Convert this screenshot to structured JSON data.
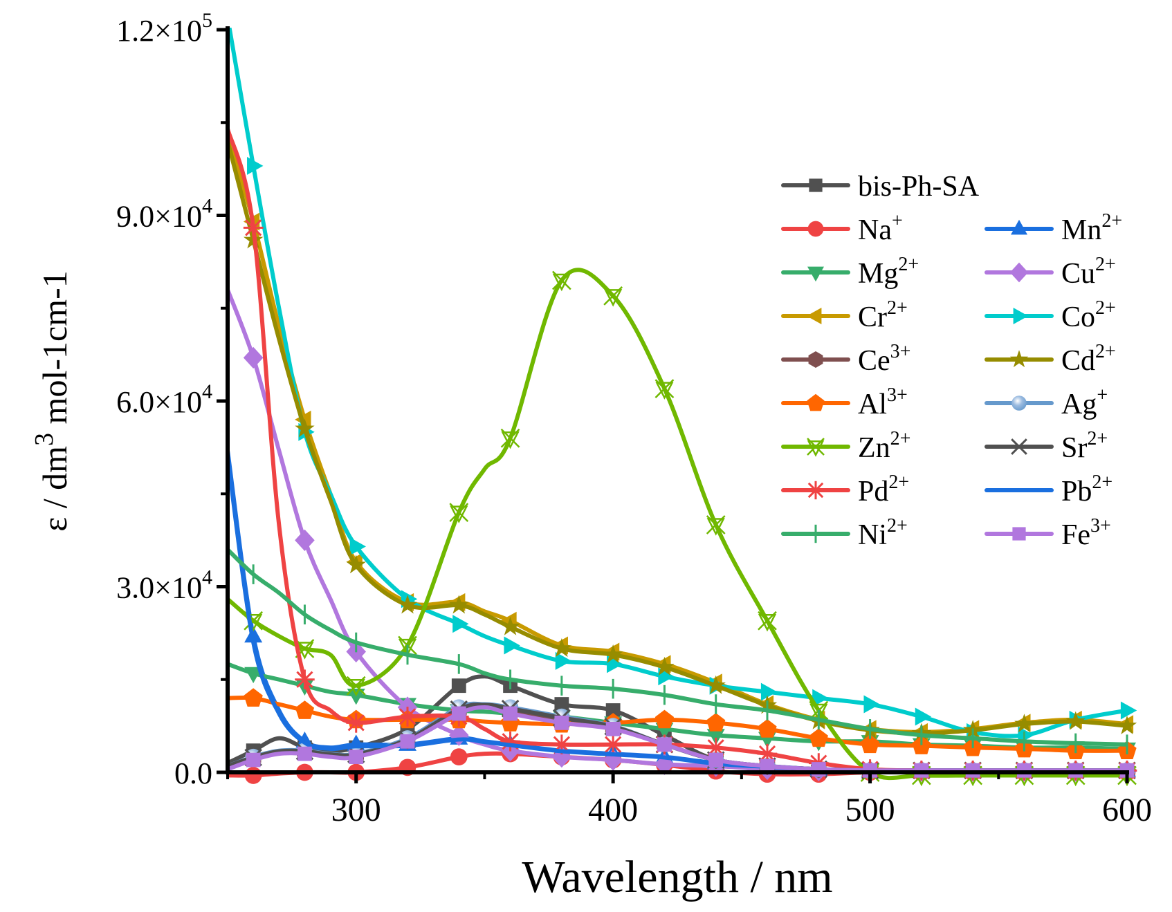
{
  "chart_data": {
    "type": "line",
    "xlabel": "Wavelength / nm",
    "ylabel": {
      "main": "ε / dm",
      "sup": "3",
      "rest": " mol-1cm-1"
    },
    "xlim": [
      250,
      600
    ],
    "ylim": [
      0,
      120000
    ],
    "grid": false,
    "legend_position": "right",
    "x_ticks": [
      {
        "value": 300,
        "label": "300"
      },
      {
        "value": 400,
        "label": "400"
      },
      {
        "value": 500,
        "label": "500"
      },
      {
        "value": 600,
        "label": "600"
      }
    ],
    "y_ticks": [
      {
        "value": 0,
        "label": "0.0",
        "exp": ""
      },
      {
        "value": 30000,
        "label": "3.0×10",
        "exp": "4"
      },
      {
        "value": 60000,
        "label": "6.0×10",
        "exp": "4"
      },
      {
        "value": 90000,
        "label": "9.0×10",
        "exp": "4"
      },
      {
        "value": 120000,
        "label": "1.2×10",
        "exp": "5"
      }
    ],
    "y_unit_multiplier": 1000,
    "x": [
      250,
      260,
      270,
      280,
      290,
      300,
      320,
      340,
      350,
      360,
      380,
      400,
      420,
      440,
      460,
      480,
      500,
      520,
      540,
      560,
      580,
      600
    ],
    "series": [
      {
        "base": "bis-Ph-SA",
        "sup": "",
        "color": "#505050",
        "marker": "square",
        "values": [
          1.5,
          3.5,
          5.5,
          4,
          3.5,
          4,
          7,
          14,
          15.5,
          14,
          11,
          10,
          6,
          2,
          1,
          0.5,
          0.3,
          0.3,
          0.3,
          0.3,
          0.3,
          0.3
        ]
      },
      {
        "base": "Na",
        "sup": "+",
        "color": "#ef4343",
        "marker": "circle",
        "values": [
          -0.5,
          -0.5,
          -0.2,
          0,
          0,
          0,
          0.8,
          2.5,
          3,
          3,
          2.5,
          2,
          1.2,
          0.2,
          -0.3,
          -0.3,
          0,
          0,
          0,
          0,
          0,
          0
        ]
      },
      {
        "base": "Mn",
        "sup": "2+",
        "color": "#1a6fdf",
        "marker": "triangle-up",
        "values": [
          52,
          22,
          10,
          5,
          4,
          4.5,
          4.5,
          5.5,
          5,
          4.5,
          3.5,
          3,
          2.5,
          1.5,
          1,
          0.5,
          0.3,
          0.3,
          0.3,
          0.3,
          0.3,
          0.3
        ]
      },
      {
        "base": "Mg",
        "sup": "2+",
        "color": "#37ad6b",
        "marker": "triangle-down",
        "values": [
          17.5,
          16,
          15,
          14,
          13,
          12.5,
          11,
          10,
          9.8,
          9.5,
          9,
          8,
          7,
          6,
          5.5,
          5,
          5,
          4.5,
          4.3,
          4,
          4,
          3.8
        ]
      },
      {
        "base": "Cu",
        "sup": "2+",
        "color": "#b177de",
        "marker": "diamond",
        "values": [
          78,
          67,
          52,
          37.5,
          28,
          19.5,
          10.5,
          6,
          4.5,
          3.5,
          2.5,
          2,
          1.3,
          1,
          0.5,
          0.3,
          0.2,
          0.2,
          0.2,
          0.2,
          0.2,
          0.2
        ]
      },
      {
        "base": "Cr",
        "sup": "2+",
        "color": "#c89a00",
        "marker": "triangle-left",
        "values": [
          103,
          89,
          72,
          57,
          45,
          34,
          27.5,
          27.5,
          26,
          24.5,
          20.5,
          19.5,
          17.5,
          14.5,
          11,
          8.5,
          7,
          6.5,
          7,
          8,
          8.5,
          7.8
        ]
      },
      {
        "base": "Co",
        "sup": "2+",
        "color": "#00cccc",
        "marker": "triangle-right",
        "values": [
          122,
          98,
          75,
          55,
          45,
          36.5,
          28,
          24,
          22,
          20.5,
          18,
          17.5,
          15.5,
          14,
          13,
          12,
          11,
          9,
          6.5,
          6,
          8.5,
          10
        ]
      },
      {
        "base": "Ce",
        "sup": "3+",
        "color": "#7f4f4f",
        "marker": "hexagon",
        "values": [
          1,
          2.3,
          3.3,
          3.3,
          2.8,
          2.8,
          5.2,
          10,
          10.8,
          10,
          8.5,
          7.2,
          4.5,
          2,
          1,
          0.5,
          0.3,
          0.3,
          0.3,
          0.3,
          0.3,
          0.3
        ]
      },
      {
        "base": "Cd",
        "sup": "2+",
        "color": "#968c00",
        "marker": "star",
        "values": [
          102,
          86,
          70,
          55.5,
          44,
          33.5,
          27,
          27,
          25.5,
          23.5,
          20,
          19,
          17,
          14,
          10.8,
          8.3,
          6.8,
          6.3,
          6.8,
          7.8,
          8.2,
          7.5
        ]
      },
      {
        "base": "Al",
        "sup": "3+",
        "color": "#ff6600",
        "marker": "pentagon",
        "values": [
          12,
          12,
          11,
          10,
          9,
          8.5,
          8.5,
          8.5,
          8.2,
          8,
          7.8,
          8,
          8.5,
          8,
          7,
          5.5,
          4.5,
          4.3,
          4,
          3.8,
          3.5,
          3.5
        ]
      },
      {
        "base": "Ag",
        "sup": "+",
        "color": "#6699cc",
        "marker": "sphere",
        "values": [
          1,
          2.5,
          3.5,
          3.5,
          3,
          3,
          5.5,
          10.5,
          11,
          10.5,
          9,
          7.5,
          4.5,
          2,
          1,
          0.5,
          0.3,
          0.3,
          0.3,
          0.3,
          0.3,
          0.3
        ]
      },
      {
        "base": "Zn",
        "sup": "2+",
        "color": "#70b800",
        "marker": "zn-cross",
        "values": [
          28,
          24.5,
          22,
          20,
          19,
          14,
          20.5,
          42,
          49,
          54,
          79.5,
          77,
          62,
          40,
          24.5,
          10,
          0,
          -0.5,
          -0.5,
          -0.5,
          -0.5,
          -0.5
        ]
      },
      {
        "base": "Sr",
        "sup": "2+",
        "color": "#505050",
        "marker": "x",
        "values": [
          1,
          2.4,
          3.4,
          3.4,
          2.9,
          2.9,
          5.3,
          10.2,
          10.9,
          10.3,
          8.8,
          7.4,
          4.5,
          2,
          1,
          0.5,
          0.3,
          0.3,
          0.3,
          0.3,
          0.3,
          0.3
        ]
      },
      {
        "base": "Pd",
        "sup": "2+",
        "color": "#ef4343",
        "marker": "asterisk",
        "values": [
          104,
          88,
          40,
          15,
          10,
          8,
          9,
          9,
          7,
          5,
          4.5,
          4.5,
          4.5,
          4,
          3,
          1.5,
          0.5,
          0.3,
          0.3,
          0.3,
          0.3,
          0.3
        ]
      },
      {
        "base": "Pb",
        "sup": "2+",
        "color": "#1a6fdf",
        "marker": "none",
        "values": [
          51,
          21,
          9.5,
          4.8,
          3.8,
          4.2,
          4.3,
          5.3,
          4.9,
          4.4,
          3.4,
          2.9,
          2.4,
          1.4,
          0.9,
          0.5,
          0.3,
          0.3,
          0.3,
          0.3,
          0.3,
          0.3
        ]
      },
      {
        "base": "Ni",
        "sup": "2+",
        "color": "#37ad6b",
        "marker": "plus",
        "values": [
          36,
          32,
          29,
          25.5,
          23,
          21,
          19,
          17.5,
          16,
          15,
          14,
          13.5,
          12.5,
          11,
          10,
          8.5,
          7,
          6,
          5.5,
          5,
          4.7,
          4.5
        ]
      },
      {
        "base": "Fe",
        "sup": "3+",
        "color": "#b177de",
        "marker": "square",
        "values": [
          0.5,
          2,
          3,
          3,
          2.5,
          2.5,
          5,
          9.5,
          10.5,
          9.5,
          8,
          7,
          4.5,
          2,
          1,
          0.5,
          0.3,
          0.3,
          0.3,
          0.3,
          0.3,
          0.3
        ]
      }
    ]
  }
}
